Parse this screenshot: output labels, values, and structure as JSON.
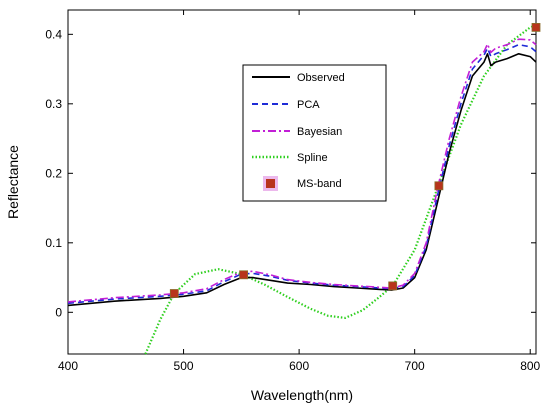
{
  "chart_data": {
    "type": "line",
    "title": "",
    "xlabel": "Wavelength(nm)",
    "ylabel": "Reflectance",
    "xlim": [
      400,
      805
    ],
    "ylim": [
      -0.06,
      0.435
    ],
    "x_ticks": [
      400,
      500,
      600,
      700,
      800
    ],
    "y_ticks": [
      0,
      0.1,
      0.2,
      0.3,
      0.4
    ],
    "y_tick_labels": [
      "0",
      "0.1",
      "0.2",
      "0.3",
      "0.4"
    ],
    "grid": false,
    "legend_position": "top-center",
    "series": [
      {
        "name": "Observed",
        "style": "solid",
        "color": "#000000",
        "x": [
          400,
          420,
          440,
          460,
          480,
          500,
          520,
          535,
          550,
          560,
          575,
          590,
          610,
          630,
          650,
          670,
          680,
          690,
          700,
          710,
          720,
          730,
          740,
          750,
          760,
          763,
          766,
          770,
          780,
          790,
          800,
          805
        ],
        "y": [
          0.01,
          0.013,
          0.016,
          0.018,
          0.02,
          0.023,
          0.028,
          0.04,
          0.05,
          0.05,
          0.046,
          0.042,
          0.04,
          0.037,
          0.035,
          0.033,
          0.032,
          0.035,
          0.05,
          0.09,
          0.16,
          0.23,
          0.29,
          0.34,
          0.36,
          0.372,
          0.355,
          0.36,
          0.365,
          0.372,
          0.368,
          0.36
        ]
      },
      {
        "name": "PCA",
        "style": "dashed",
        "color": "#1f2bd6",
        "x": [
          400,
          420,
          440,
          460,
          480,
          500,
          520,
          535,
          550,
          560,
          575,
          590,
          610,
          630,
          650,
          670,
          680,
          690,
          700,
          710,
          720,
          730,
          740,
          750,
          760,
          763,
          766,
          770,
          780,
          790,
          800,
          805
        ],
        "y": [
          0.013,
          0.016,
          0.019,
          0.021,
          0.023,
          0.026,
          0.031,
          0.044,
          0.055,
          0.056,
          0.052,
          0.046,
          0.042,
          0.039,
          0.037,
          0.035,
          0.034,
          0.037,
          0.053,
          0.095,
          0.17,
          0.24,
          0.3,
          0.35,
          0.37,
          0.38,
          0.368,
          0.372,
          0.378,
          0.385,
          0.382,
          0.375
        ]
      },
      {
        "name": "Bayesian",
        "style": "dashdot",
        "color": "#c21fd6",
        "x": [
          400,
          420,
          440,
          460,
          480,
          500,
          520,
          535,
          550,
          560,
          575,
          590,
          610,
          630,
          650,
          670,
          680,
          690,
          700,
          710,
          720,
          730,
          740,
          750,
          760,
          763,
          766,
          770,
          780,
          790,
          800,
          805
        ],
        "y": [
          0.015,
          0.018,
          0.021,
          0.023,
          0.025,
          0.028,
          0.034,
          0.047,
          0.058,
          0.059,
          0.054,
          0.047,
          0.043,
          0.04,
          0.038,
          0.036,
          0.035,
          0.039,
          0.056,
          0.1,
          0.18,
          0.25,
          0.31,
          0.36,
          0.375,
          0.386,
          0.374,
          0.38,
          0.385,
          0.393,
          0.392,
          0.385
        ]
      },
      {
        "name": "Spline",
        "style": "dotted",
        "color": "#2fcf1f",
        "x": [
          467,
          480,
          492,
          510,
          530,
          550,
          570,
          590,
          610,
          625,
          640,
          655,
          668,
          681,
          700,
          720,
          740,
          760,
          780,
          800,
          805
        ],
        "y": [
          -0.06,
          -0.01,
          0.027,
          0.055,
          0.062,
          0.055,
          0.04,
          0.022,
          0.005,
          -0.005,
          -0.008,
          0.003,
          0.02,
          0.038,
          0.09,
          0.18,
          0.27,
          0.34,
          0.385,
          0.41,
          0.413
        ]
      }
    ],
    "ms_band": {
      "name": "MS-band",
      "color": "#b8341c",
      "x": [
        492,
        552,
        681,
        721,
        805
      ],
      "y": [
        0.027,
        0.054,
        0.038,
        0.182,
        0.41
      ]
    }
  }
}
